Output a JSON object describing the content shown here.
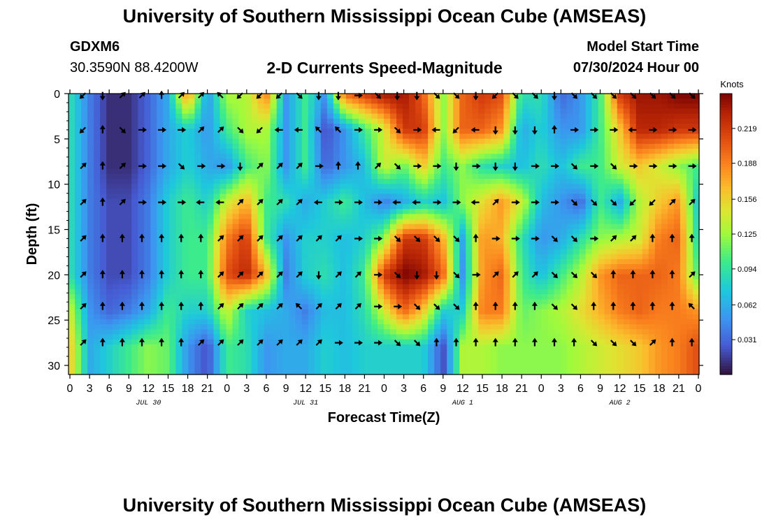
{
  "header": {
    "title": "University of Southern Mississippi Ocean Cube (AMSEAS)",
    "station_id": "GDXM6",
    "station_coords": "30.3590N  88.4200W",
    "subtitle": "2-D Currents Speed-Magnitude",
    "model_start_label": "Model Start Time",
    "model_start_value": "07/30/2024 Hour 00"
  },
  "footer": {
    "title": "University of Southern Mississippi Ocean Cube (AMSEAS)"
  },
  "chart_data": {
    "type": "heatmap",
    "xlabel": "Forecast Time(Z)",
    "ylabel": "Depth (ft)",
    "colorbar_label": "Knots",
    "colorbar_ticks": [
      0.031,
      0.062,
      0.094,
      0.125,
      0.156,
      0.188,
      0.219
    ],
    "value_range": [
      0.0,
      0.25
    ],
    "xlim_hours": [
      0,
      96
    ],
    "ylim": [
      31,
      0
    ],
    "x_ticks": [
      "0",
      "3",
      "6",
      "9",
      "12",
      "15",
      "18",
      "21",
      "0",
      "3",
      "6",
      "9",
      "12",
      "15",
      "18",
      "21",
      "0",
      "3",
      "6",
      "9",
      "12",
      "15",
      "18",
      "21",
      "0",
      "3",
      "6",
      "9",
      "12",
      "15",
      "18",
      "21",
      "0"
    ],
    "y_ticks": [
      0,
      5,
      10,
      15,
      20,
      25,
      30
    ],
    "day_labels": [
      "JUL 30",
      "JUL 31",
      "AUG 1",
      "AUG 2"
    ],
    "time_hours": [
      0,
      3,
      6,
      9,
      12,
      15,
      18,
      21,
      24,
      27,
      30,
      33,
      36,
      39,
      42,
      45,
      48,
      51,
      54,
      57,
      60,
      63,
      66,
      69,
      72,
      75,
      78,
      81,
      84,
      87,
      90,
      93,
      96
    ],
    "depth_ft": [
      0,
      4,
      8,
      12,
      16,
      20,
      24,
      28,
      31
    ],
    "speed_knots": [
      [
        0.09,
        0.04,
        0.01,
        0.01,
        0.03,
        0.06,
        0.19,
        0.05,
        0.13,
        0.13,
        0.19,
        0.05,
        0.1,
        0.05,
        0.2,
        0.22,
        0.24,
        0.24,
        0.2,
        0.12,
        0.2,
        0.22,
        0.21,
        0.09,
        0.09,
        0.03,
        0.05,
        0.1,
        0.22,
        0.24,
        0.24,
        0.25,
        0.25
      ],
      [
        0.09,
        0.04,
        0.01,
        0.01,
        0.03,
        0.06,
        0.08,
        0.05,
        0.1,
        0.13,
        0.13,
        0.05,
        0.1,
        0.02,
        0.05,
        0.1,
        0.14,
        0.22,
        0.22,
        0.12,
        0.2,
        0.2,
        0.18,
        0.06,
        0.08,
        0.05,
        0.05,
        0.1,
        0.16,
        0.23,
        0.23,
        0.22,
        0.22
      ],
      [
        0.09,
        0.04,
        0.01,
        0.01,
        0.03,
        0.06,
        0.08,
        0.06,
        0.05,
        0.1,
        0.12,
        0.05,
        0.1,
        0.03,
        0.05,
        0.07,
        0.14,
        0.11,
        0.16,
        0.1,
        0.12,
        0.09,
        0.08,
        0.07,
        0.09,
        0.07,
        0.1,
        0.1,
        0.14,
        0.16,
        0.14,
        0.12,
        0.1
      ],
      [
        0.09,
        0.04,
        0.02,
        0.02,
        0.04,
        0.08,
        0.1,
        0.08,
        0.14,
        0.17,
        0.1,
        0.09,
        0.06,
        0.08,
        0.1,
        0.07,
        0.04,
        0.06,
        0.08,
        0.07,
        0.12,
        0.15,
        0.18,
        0.14,
        0.07,
        0.05,
        0.03,
        0.1,
        0.06,
        0.13,
        0.16,
        0.18,
        0.07
      ],
      [
        0.09,
        0.04,
        0.02,
        0.02,
        0.04,
        0.08,
        0.1,
        0.1,
        0.19,
        0.22,
        0.1,
        0.05,
        0.08,
        0.08,
        0.07,
        0.08,
        0.12,
        0.22,
        0.22,
        0.17,
        0.06,
        0.18,
        0.17,
        0.09,
        0.05,
        0.06,
        0.09,
        0.12,
        0.13,
        0.14,
        0.19,
        0.2,
        0.08
      ],
      [
        0.09,
        0.04,
        0.02,
        0.02,
        0.04,
        0.08,
        0.1,
        0.1,
        0.21,
        0.23,
        0.17,
        0.04,
        0.08,
        0.09,
        0.07,
        0.1,
        0.22,
        0.25,
        0.24,
        0.2,
        0.05,
        0.18,
        0.2,
        0.1,
        0.07,
        0.1,
        0.13,
        0.18,
        0.2,
        0.2,
        0.2,
        0.19,
        0.1
      ],
      [
        0.14,
        0.05,
        0.03,
        0.04,
        0.06,
        0.1,
        0.08,
        0.08,
        0.14,
        0.08,
        0.07,
        0.06,
        0.04,
        0.07,
        0.07,
        0.09,
        0.14,
        0.2,
        0.16,
        0.08,
        0.08,
        0.19,
        0.19,
        0.11,
        0.12,
        0.13,
        0.15,
        0.17,
        0.19,
        0.2,
        0.19,
        0.19,
        0.18
      ],
      [
        0.16,
        0.06,
        0.08,
        0.1,
        0.12,
        0.11,
        0.05,
        0.02,
        0.1,
        0.09,
        0.05,
        0.06,
        0.06,
        0.08,
        0.07,
        0.08,
        0.08,
        0.08,
        0.08,
        0.02,
        0.13,
        0.13,
        0.12,
        0.12,
        0.12,
        0.12,
        0.13,
        0.14,
        0.15,
        0.16,
        0.18,
        0.19,
        0.21
      ],
      [
        0.16,
        0.06,
        0.08,
        0.1,
        0.12,
        0.11,
        0.05,
        0.02,
        0.1,
        0.09,
        0.05,
        0.06,
        0.06,
        0.08,
        0.07,
        0.08,
        0.08,
        0.08,
        0.08,
        0.02,
        0.13,
        0.13,
        0.12,
        0.12,
        0.12,
        0.12,
        0.13,
        0.14,
        0.15,
        0.16,
        0.18,
        0.19,
        0.21
      ]
    ],
    "arrow_depths_ft": [
      0.2,
      4,
      8,
      12,
      16,
      20,
      23.5,
      27.5
    ],
    "arrow_times_hours": [
      2,
      5,
      8,
      11,
      14,
      17,
      20,
      23,
      26,
      29,
      32,
      35,
      38,
      41,
      44,
      47,
      50,
      53,
      56,
      59,
      62,
      65,
      68,
      71,
      74,
      77,
      80,
      83,
      86,
      89,
      92,
      95
    ],
    "arrow_direction_deg": [
      [
        225,
        180,
        45,
        45,
        0,
        45,
        45,
        315,
        225,
        225,
        225,
        135,
        180,
        180,
        90,
        135,
        180,
        180,
        135,
        135,
        180,
        225,
        135,
        135,
        180,
        135,
        135,
        135,
        135,
        135,
        135,
        135
      ],
      [
        225,
        0,
        135,
        90,
        90,
        90,
        45,
        45,
        135,
        225,
        270,
        270,
        315,
        315,
        90,
        90,
        135,
        90,
        270,
        225,
        270,
        180,
        180,
        180,
        0,
        90,
        90,
        90,
        270,
        90,
        90,
        90
      ],
      [
        45,
        0,
        45,
        90,
        90,
        135,
        90,
        90,
        180,
        45,
        45,
        45,
        90,
        0,
        0,
        45,
        135,
        90,
        90,
        180,
        90,
        180,
        180,
        90,
        90,
        135,
        90,
        135,
        90,
        90,
        90,
        90
      ],
      [
        45,
        0,
        45,
        90,
        90,
        90,
        270,
        270,
        45,
        45,
        45,
        45,
        270,
        90,
        90,
        90,
        270,
        270,
        90,
        90,
        270,
        45,
        90,
        90,
        90,
        135,
        135,
        135,
        225,
        225,
        45,
        45
      ],
      [
        45,
        0,
        0,
        0,
        0,
        0,
        0,
        45,
        45,
        45,
        45,
        45,
        45,
        45,
        90,
        90,
        135,
        135,
        135,
        135,
        0,
        90,
        90,
        90,
        135,
        135,
        90,
        45,
        45,
        0,
        0,
        0
      ],
      [
        45,
        0,
        0,
        0,
        0,
        0,
        0,
        45,
        45,
        45,
        45,
        45,
        180,
        45,
        45,
        90,
        135,
        180,
        180,
        135,
        90,
        45,
        45,
        45,
        135,
        135,
        135,
        0,
        0,
        0,
        0,
        45
      ],
      [
        45,
        0,
        0,
        0,
        0,
        0,
        0,
        45,
        45,
        45,
        45,
        315,
        45,
        45,
        45,
        90,
        90,
        135,
        135,
        135,
        0,
        0,
        0,
        0,
        135,
        135,
        0,
        0,
        0,
        0,
        0,
        315
      ],
      [
        45,
        0,
        0,
        0,
        0,
        0,
        45,
        45,
        45,
        45,
        45,
        45,
        45,
        90,
        90,
        90,
        135,
        135,
        0,
        0,
        0,
        0,
        0,
        0,
        0,
        0,
        135,
        135,
        135,
        45,
        0,
        0
      ]
    ]
  }
}
